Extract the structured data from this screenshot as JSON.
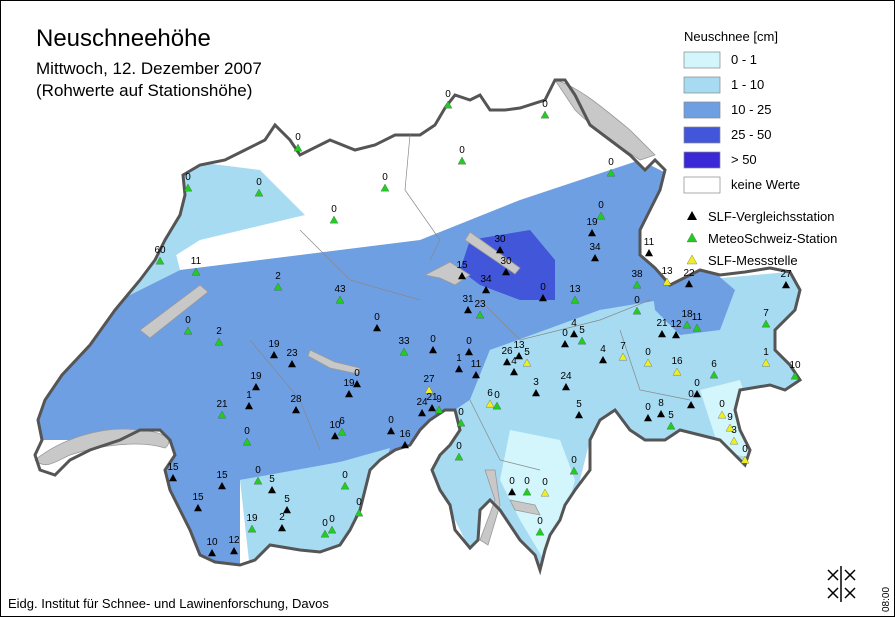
{
  "header": {
    "title": "Neuschneehöhe",
    "date": "Mittwoch, 12. Dezember 2007",
    "note": "(Rohwerte auf Stationshöhe)"
  },
  "legend": {
    "title": "Neuschnee [cm]",
    "classes": [
      {
        "label": "0 - 1",
        "color": "#d2f6fb"
      },
      {
        "label": "1 - 10",
        "color": "#a6dbf2"
      },
      {
        "label": "10 - 25",
        "color": "#6f9fe3"
      },
      {
        "label": "25 - 50",
        "color": "#4156d8"
      },
      {
        "label": "> 50",
        "color": "#3a27d6"
      },
      {
        "label": "keine Werte",
        "color": "#ffffff"
      }
    ],
    "stations": [
      {
        "label": "SLF-Vergleichsstation",
        "color": "#000000"
      },
      {
        "label": "MeteoSchweiz-Station",
        "color": "#22cc22"
      },
      {
        "label": "SLF-Messstelle",
        "color": "#eeee22"
      }
    ]
  },
  "stations": [
    0,
    0,
    0,
    0,
    0,
    0,
    0,
    0,
    0,
    0,
    19,
    30,
    34,
    11,
    60,
    11,
    15,
    30,
    34,
    38,
    13,
    22,
    27,
    2,
    0,
    43,
    13,
    31,
    23,
    0,
    0,
    0,
    21,
    18,
    12,
    11,
    7,
    4,
    5,
    0,
    2,
    0,
    33,
    0,
    19,
    23,
    26,
    13,
    5,
    4,
    4,
    7,
    0,
    1,
    1,
    11,
    16,
    6,
    10,
    0,
    19,
    19,
    27,
    24,
    3,
    0,
    1,
    28,
    21,
    21,
    9,
    24,
    6,
    0,
    0,
    5,
    0,
    8,
    5,
    0,
    0,
    0,
    6,
    10,
    9,
    0,
    16,
    3,
    0,
    0,
    15,
    0,
    0,
    15,
    0,
    5,
    0,
    0,
    0,
    0,
    15,
    5,
    19,
    2,
    0,
    0,
    0,
    10,
    12
  ],
  "footer": {
    "credit": "Eidg. Institut für Schnee- und Lawinenforschung, Davos",
    "time": "08:00"
  }
}
